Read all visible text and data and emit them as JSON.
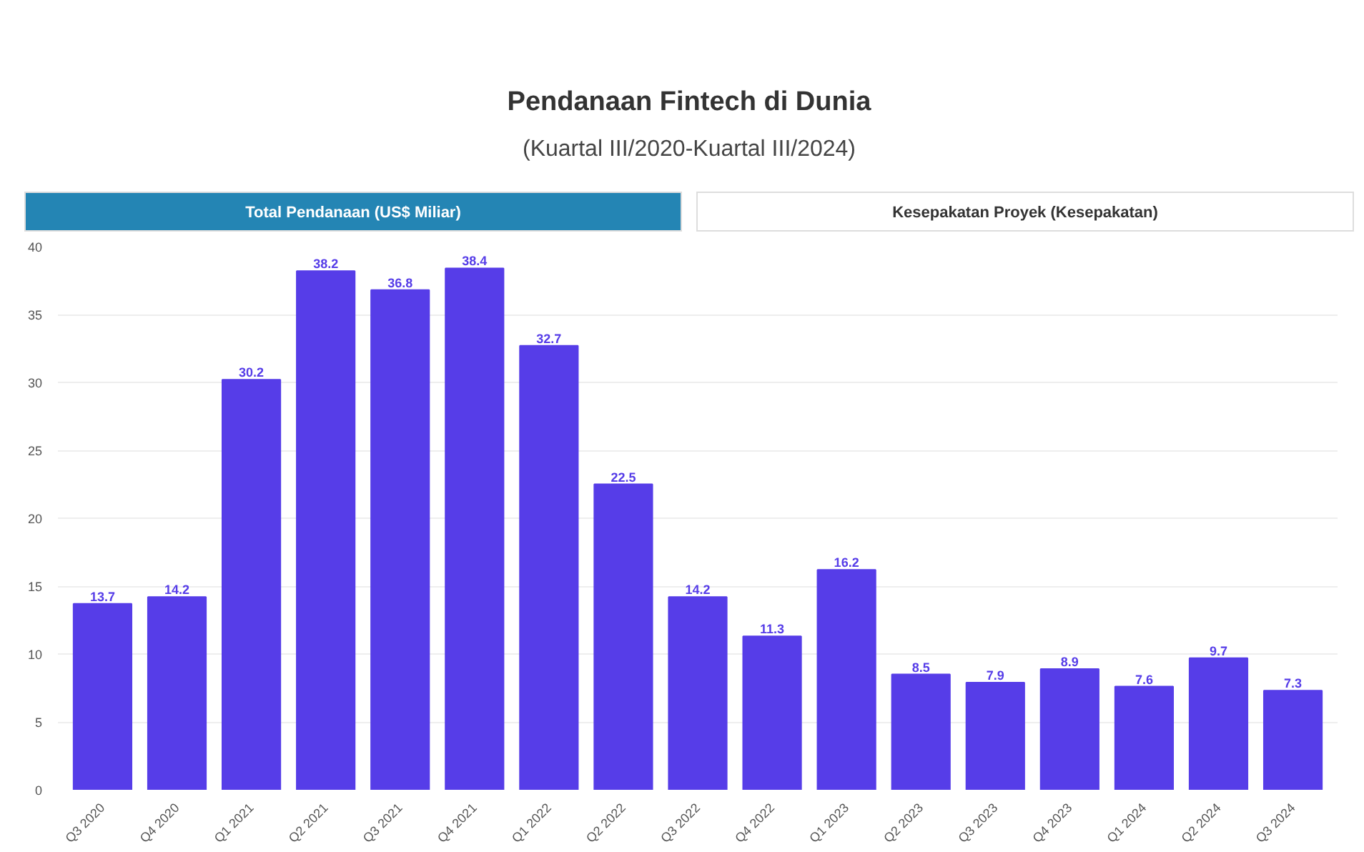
{
  "chart_data": {
    "type": "bar",
    "title": "Pendanaan Fintech di Dunia",
    "subtitle": "(Kuartal III/2020-Kuartal III/2024)",
    "annotations": [
      "Total Pendanaan (US$ Miliar)",
      "Kesepakatan Proyek (Kesepakatan)"
    ],
    "categories": [
      "Q3 2020",
      "Q4 2020",
      "Q1 2021",
      "Q2 2021",
      "Q3 2021",
      "Q4 2021",
      "Q1 2022",
      "Q2 2022",
      "Q3 2022",
      "Q4 2022",
      "Q1 2023",
      "Q2 2023",
      "Q3 2023",
      "Q4 2023",
      "Q1 2024",
      "Q2 2024",
      "Q3 2024"
    ],
    "values": [
      13.7,
      14.2,
      30.2,
      38.2,
      36.8,
      38.4,
      32.7,
      22.5,
      14.2,
      11.3,
      16.2,
      8.5,
      7.9,
      8.9,
      7.6,
      9.7,
      7.3
    ],
    "color": "#563de8",
    "ylim": [
      0,
      40
    ],
    "yticks": [
      0,
      5,
      10,
      15,
      20,
      25,
      30,
      35,
      40
    ],
    "grid": "y",
    "data_labels": true
  }
}
